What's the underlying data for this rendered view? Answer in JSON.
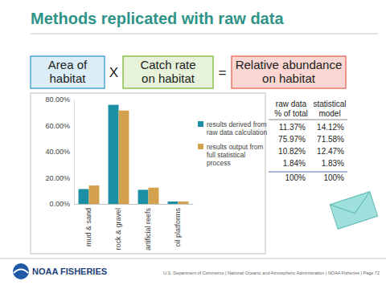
{
  "slide": {
    "title": "Methods replicated with raw data",
    "boxes": [
      [
        "Area of",
        "habitat"
      ],
      [
        "Catch rate",
        "on habitat"
      ],
      [
        "Relative abundance",
        "on habitat"
      ]
    ],
    "operators": [
      "X",
      "="
    ],
    "table": {
      "header": [
        [
          "raw data",
          "% of total"
        ],
        [
          "statistical",
          "model"
        ]
      ],
      "rows": [
        [
          "11.37%",
          "14.12%"
        ],
        [
          "75.97%",
          "71.58%"
        ],
        [
          "10.82%",
          "12.47%"
        ],
        [
          "1.84%",
          "1.83%"
        ],
        [
          "100%",
          "100%"
        ]
      ]
    },
    "logo": "NOAA FISHERIES",
    "footer": "U.S. Department of Commerce | National Oceanic and Atmospheric Administration | NOAA Fisheries | Page 72"
  },
  "chart_data": {
    "type": "bar",
    "categories": [
      "mud & sand",
      "rock & gravel",
      "artificial reefs",
      "oil platforms"
    ],
    "series": [
      {
        "name": "results derived from raw data calculation",
        "color": "#1b8fa3",
        "values": [
          11.37,
          75.97,
          10.82,
          1.84
        ]
      },
      {
        "name": "results output from full statistical process",
        "color": "#d4a24e",
        "values": [
          14.12,
          71.58,
          12.47,
          1.83
        ]
      }
    ],
    "ylim": [
      0,
      80
    ],
    "yticks": [
      {
        "value": 0,
        "label": "0.00%"
      },
      {
        "value": 20,
        "label": "20.00%"
      },
      {
        "value": 40,
        "label": "40.00%"
      },
      {
        "value": 60,
        "label": "60.00%"
      },
      {
        "value": 80,
        "label": "80.00%"
      }
    ],
    "grid": false,
    "legend": "right"
  }
}
